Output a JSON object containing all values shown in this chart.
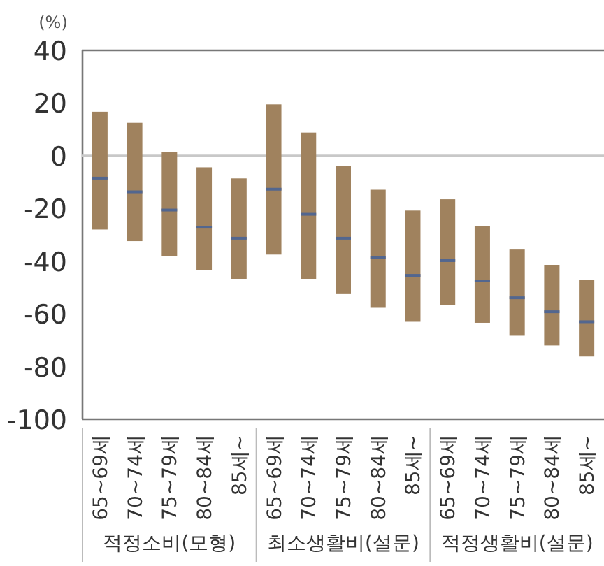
{
  "chart_data": {
    "type": "box",
    "ylabel": "(%)",
    "color": "#a0825e",
    "categories": [
      "65~69세",
      "70~74세",
      "75~79세",
      "80~84세",
      "85세~",
      "65~69세",
      "70~74세",
      "75~79세",
      "80~84세",
      "85세~",
      "65~69세",
      "70~74세",
      "75~79세",
      "80~84세",
      "85세~"
    ],
    "boxes": [
      {
        "low": -28,
        "q1": -28,
        "median": -8.5,
        "q3": 16.7,
        "high": 16.7
      },
      {
        "low": -32.4,
        "q1": -32.4,
        "median": -13.7,
        "q3": 12.5,
        "high": 12.5
      },
      {
        "low": -38,
        "q1": -38,
        "median": -20.6,
        "q3": 1.4,
        "high": 1.4
      },
      {
        "low": -43.3,
        "q1": -43.3,
        "median": -27.1,
        "q3": -4.4,
        "high": -4.4
      },
      {
        "low": -46.7,
        "q1": -46.7,
        "median": -31.3,
        "q3": -8.6,
        "high": -8.6
      },
      {
        "low": -37.5,
        "q1": -37.5,
        "median": -12.7,
        "q3": 19.5,
        "high": 19.5
      },
      {
        "low": -46.7,
        "q1": -46.7,
        "median": -22.2,
        "q3": 8.8,
        "high": 8.8
      },
      {
        "low": -52.5,
        "q1": -52.5,
        "median": -31.3,
        "q3": -3.9,
        "high": -3.9
      },
      {
        "low": -57.7,
        "q1": -57.7,
        "median": -38.7,
        "q3": -12.9,
        "high": -12.9
      },
      {
        "low": -63,
        "q1": -63,
        "median": -45.4,
        "q3": -20.8,
        "high": -20.8
      },
      {
        "low": -56.7,
        "q1": -56.7,
        "median": -39.8,
        "q3": -16.5,
        "high": -16.5
      },
      {
        "low": -63.4,
        "q1": -63.4,
        "median": -47.5,
        "q3": -26.6,
        "high": -26.6
      },
      {
        "low": -68.3,
        "q1": -68.3,
        "median": -53.9,
        "q3": -35.6,
        "high": -35.6
      },
      {
        "low": -72,
        "q1": -72,
        "median": -59.2,
        "q3": -41.4,
        "high": -41.4
      },
      {
        "low": -76.2,
        "q1": -76.2,
        "median": -63,
        "q3": -47.2,
        "high": -47.2
      }
    ],
    "ylim": [
      -100,
      40
    ],
    "yticks": [
      -100,
      -80,
      -60,
      -40,
      -20,
      0,
      20,
      40
    ],
    "ref_lines": [
      {
        "axis": "y",
        "value": 0,
        "color": "#c8c8c8"
      }
    ],
    "annotations": [
      "적정소비(모형)",
      "최소생활비(설문)",
      "적정생활비(설문)"
    ]
  }
}
